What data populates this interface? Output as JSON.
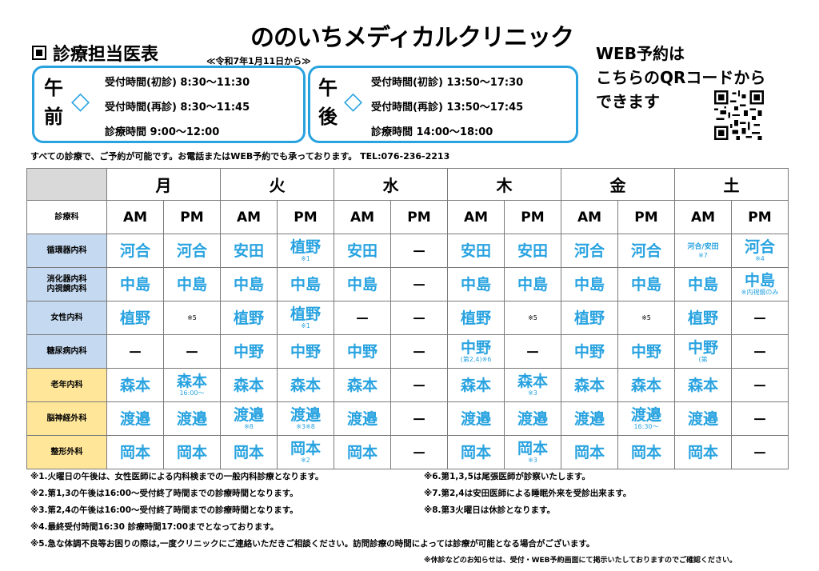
{
  "clinic_name": "ののいちメディカルクリニック",
  "schedule_title": "診療担当医表",
  "effective_date": "≪令和7年1月11日から≫",
  "morning": {
    "label_top": "午",
    "label_bottom": "前",
    "symbol": "◇",
    "lines": [
      "受付時間(初診) 8:30～11:30",
      "受付時間(再診) 8:30～11:45",
      "診療時間 9:00～12:00"
    ]
  },
  "afternoon": {
    "label_top": "午",
    "label_bottom": "後",
    "symbol": "◇",
    "lines": [
      "受付時間(初診) 13:50～17:30",
      "受付時間(再診) 13:50～17:45",
      "診療時間 14:00～18:00"
    ]
  },
  "web": {
    "line1": "WEB予約は",
    "line2": "こちらのQRコードから",
    "line3": "できます"
  },
  "notice": "すべての診療で、ご予約が可能です。お電話またはWEB予約でも承っております。 TEL:076-236-2213",
  "table": {
    "days": [
      "月",
      "火",
      "水",
      "木",
      "金",
      "土"
    ],
    "dept_header": "診療科",
    "am": "AM",
    "pm": "PM",
    "rows": [
      {
        "dept": "循環器内科",
        "cells": [
          [
            "河合",
            ""
          ],
          [
            "河合",
            ""
          ],
          [
            "安田",
            ""
          ],
          [
            "植野",
            "※1"
          ],
          [
            "安田",
            ""
          ],
          [
            "－",
            ""
          ],
          [
            "安田",
            ""
          ],
          [
            "安田",
            ""
          ],
          [
            "河合",
            ""
          ],
          [
            "河合",
            ""
          ],
          [
            "河合/安田",
            "※7"
          ],
          [
            "河合",
            "※4"
          ]
        ]
      },
      {
        "dept": "消化器内科\n内視鏡内科",
        "cells": [
          [
            "中島",
            ""
          ],
          [
            "中島",
            ""
          ],
          [
            "中島",
            ""
          ],
          [
            "中島",
            ""
          ],
          [
            "中島",
            ""
          ],
          [
            "－",
            ""
          ],
          [
            "中島",
            ""
          ],
          [
            "中島",
            ""
          ],
          [
            "中島",
            ""
          ],
          [
            "中島",
            ""
          ],
          [
            "中島",
            ""
          ],
          [
            "中島",
            "※内視鏡のみ"
          ]
        ]
      },
      {
        "dept": "女性内科",
        "cells": [
          [
            "植野",
            ""
          ],
          [
            "",
            "※5"
          ],
          [
            "植野",
            ""
          ],
          [
            "植野",
            "※1"
          ],
          [
            "－",
            ""
          ],
          [
            "－",
            ""
          ],
          [
            "植野",
            ""
          ],
          [
            "",
            "※5"
          ],
          [
            "植野",
            ""
          ],
          [
            "",
            "※5"
          ],
          [
            "植野",
            ""
          ],
          [
            "－",
            ""
          ]
        ]
      },
      {
        "dept": "糖尿病内科",
        "cells": [
          [
            "－",
            ""
          ],
          [
            "－",
            ""
          ],
          [
            "中野",
            ""
          ],
          [
            "中野",
            ""
          ],
          [
            "中野",
            ""
          ],
          [
            "－",
            ""
          ],
          [
            "中野",
            "(第2,4)※6"
          ],
          [
            "－",
            ""
          ],
          [
            "中野",
            ""
          ],
          [
            "中野",
            ""
          ],
          [
            "中野",
            "(第"
          ],
          [
            "－",
            ""
          ]
        ]
      },
      {
        "dept": "老年内科",
        "cells": [
          [
            "森本",
            ""
          ],
          [
            "森本",
            "16:00～"
          ],
          [
            "森本",
            ""
          ],
          [
            "森本",
            ""
          ],
          [
            "森本",
            ""
          ],
          [
            "－",
            ""
          ],
          [
            "森本",
            ""
          ],
          [
            "森本",
            "※3"
          ],
          [
            "森本",
            ""
          ],
          [
            "森本",
            ""
          ],
          [
            "森本",
            ""
          ],
          [
            "－",
            ""
          ]
        ]
      },
      {
        "dept": "脳神経外科",
        "cells": [
          [
            "渡邉",
            ""
          ],
          [
            "渡邉",
            ""
          ],
          [
            "渡邉",
            "※8"
          ],
          [
            "渡邉",
            "※3※8"
          ],
          [
            "渡邉",
            ""
          ],
          [
            "－",
            ""
          ],
          [
            "渡邉",
            ""
          ],
          [
            "渡邉",
            ""
          ],
          [
            "渡邉",
            ""
          ],
          [
            "渡邉",
            "16:30～"
          ],
          [
            "渡邉",
            ""
          ],
          [
            "－",
            ""
          ]
        ]
      },
      {
        "dept": "整形外科",
        "cells": [
          [
            "岡本",
            ""
          ],
          [
            "岡本",
            ""
          ],
          [
            "岡本",
            ""
          ],
          [
            "岡本",
            "※2"
          ],
          [
            "岡本",
            ""
          ],
          [
            "－",
            ""
          ],
          [
            "岡本",
            ""
          ],
          [
            "岡本",
            "※3"
          ],
          [
            "岡本",
            ""
          ],
          [
            "岡本",
            ""
          ],
          [
            "岡本",
            ""
          ],
          [
            "－",
            ""
          ]
        ]
      }
    ]
  },
  "footnotes_left": [
    "※1.火曜日の午後は、女性医師による内科検までの一般内科診療となります。",
    "※2.第1,3の午後は16:00～受付終了時間までの診療時間となります。",
    "※3.第2,4の午後は16:00～受付終了時間までの診療時間となります。",
    "※4.最終受付時間16:30 診療時間17:00までとなっております。"
  ],
  "footnotes_right": [
    "※6.第1,3,5は尾張医師が診察いたします。",
    "※7.第2,4は安田医師による睡眠外来を受診出来ます。",
    "※8.第3火曜日は休診となります。"
  ],
  "footnote_5": "※5.急な体調不良等お困りの際は,一度クリニックにご連絡いただきご相談ください。訪問診療の時間によっては診療が可能となる場合がございます。",
  "footnote_last": "※休診などのお知らせは、受付・WEB予約画面にて掲示いたしておりますのでご確認ください。",
  "colors": {
    "accent": "#29a3e0",
    "dept_blue": "#c5d9f1",
    "dept_yellow": "#ffe699",
    "header_gray": "#d9d9d9"
  }
}
